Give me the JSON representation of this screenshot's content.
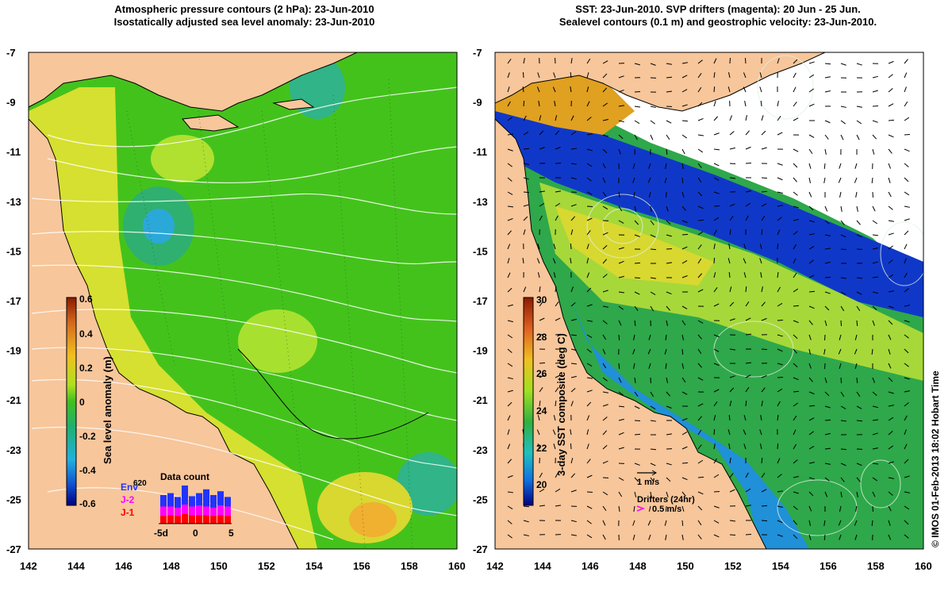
{
  "left_panel": {
    "title_line1": "Atmospheric pressure contours (2 hPa): 23-Jun-2010",
    "title_line2": "Isostatically adjusted sea level anomaly: 23-Jun-2010",
    "colorbar": {
      "label": "Sea level anomaly (m)",
      "ticks": [
        "0.6",
        "0.4",
        "0.2",
        "0",
        "-0.2",
        "-0.4",
        "-0.6"
      ],
      "top_color": "#8b1a00",
      "bottom_color": "#00007f"
    },
    "inset": {
      "title": "Data count",
      "ymax": "620",
      "legend": [
        {
          "label": "Env",
          "color": "#2233ff"
        },
        {
          "label": "J-2",
          "color": "#ff00ff"
        },
        {
          "label": "J-1",
          "color": "#ff0000"
        }
      ],
      "xticks": [
        "-5d",
        "0",
        "5"
      ],
      "bars_total": [
        0.75,
        0.8,
        0.7,
        1.0,
        0.72,
        0.8,
        0.9,
        0.75,
        0.85,
        0.7
      ],
      "bars_j2": [
        0.45,
        0.45,
        0.42,
        0.5,
        0.45,
        0.48,
        0.45,
        0.42,
        0.48,
        0.45
      ],
      "bars_j1": [
        0.2,
        0.22,
        0.2,
        0.25,
        0.22,
        0.22,
        0.22,
        0.2,
        0.22,
        0.2
      ]
    }
  },
  "right_panel": {
    "title_line1": "SST: 23-Jun-2010. SVP drifters (magenta): 20 Jun - 25 Jun.",
    "title_line2": "Sealevel contours (0.1 m) and geostrophic velocity: 23-Jun-2010.",
    "colorbar": {
      "label": "3-day SST composite (deg C)",
      "ticks": [
        "30",
        "28",
        "26",
        "24",
        "22",
        "20"
      ]
    },
    "scale_arrow_label": "1 m/s",
    "drifters_title": "Drifters (24hr)",
    "drifters_speed": "0.5 m/s"
  },
  "map": {
    "y_ticks": [
      "-7",
      "-9",
      "-11",
      "-13",
      "-15",
      "-17",
      "-19",
      "-21",
      "-23",
      "-25",
      "-27"
    ],
    "x_ticks": [
      "142",
      "144",
      "146",
      "148",
      "150",
      "152",
      "154",
      "156",
      "158",
      "160"
    ],
    "land_color": "#f7c69b",
    "ocean_color": "#3fbf1f"
  },
  "credit": "© IMOS 01-Feb-2013 18:02 Hobart Time"
}
